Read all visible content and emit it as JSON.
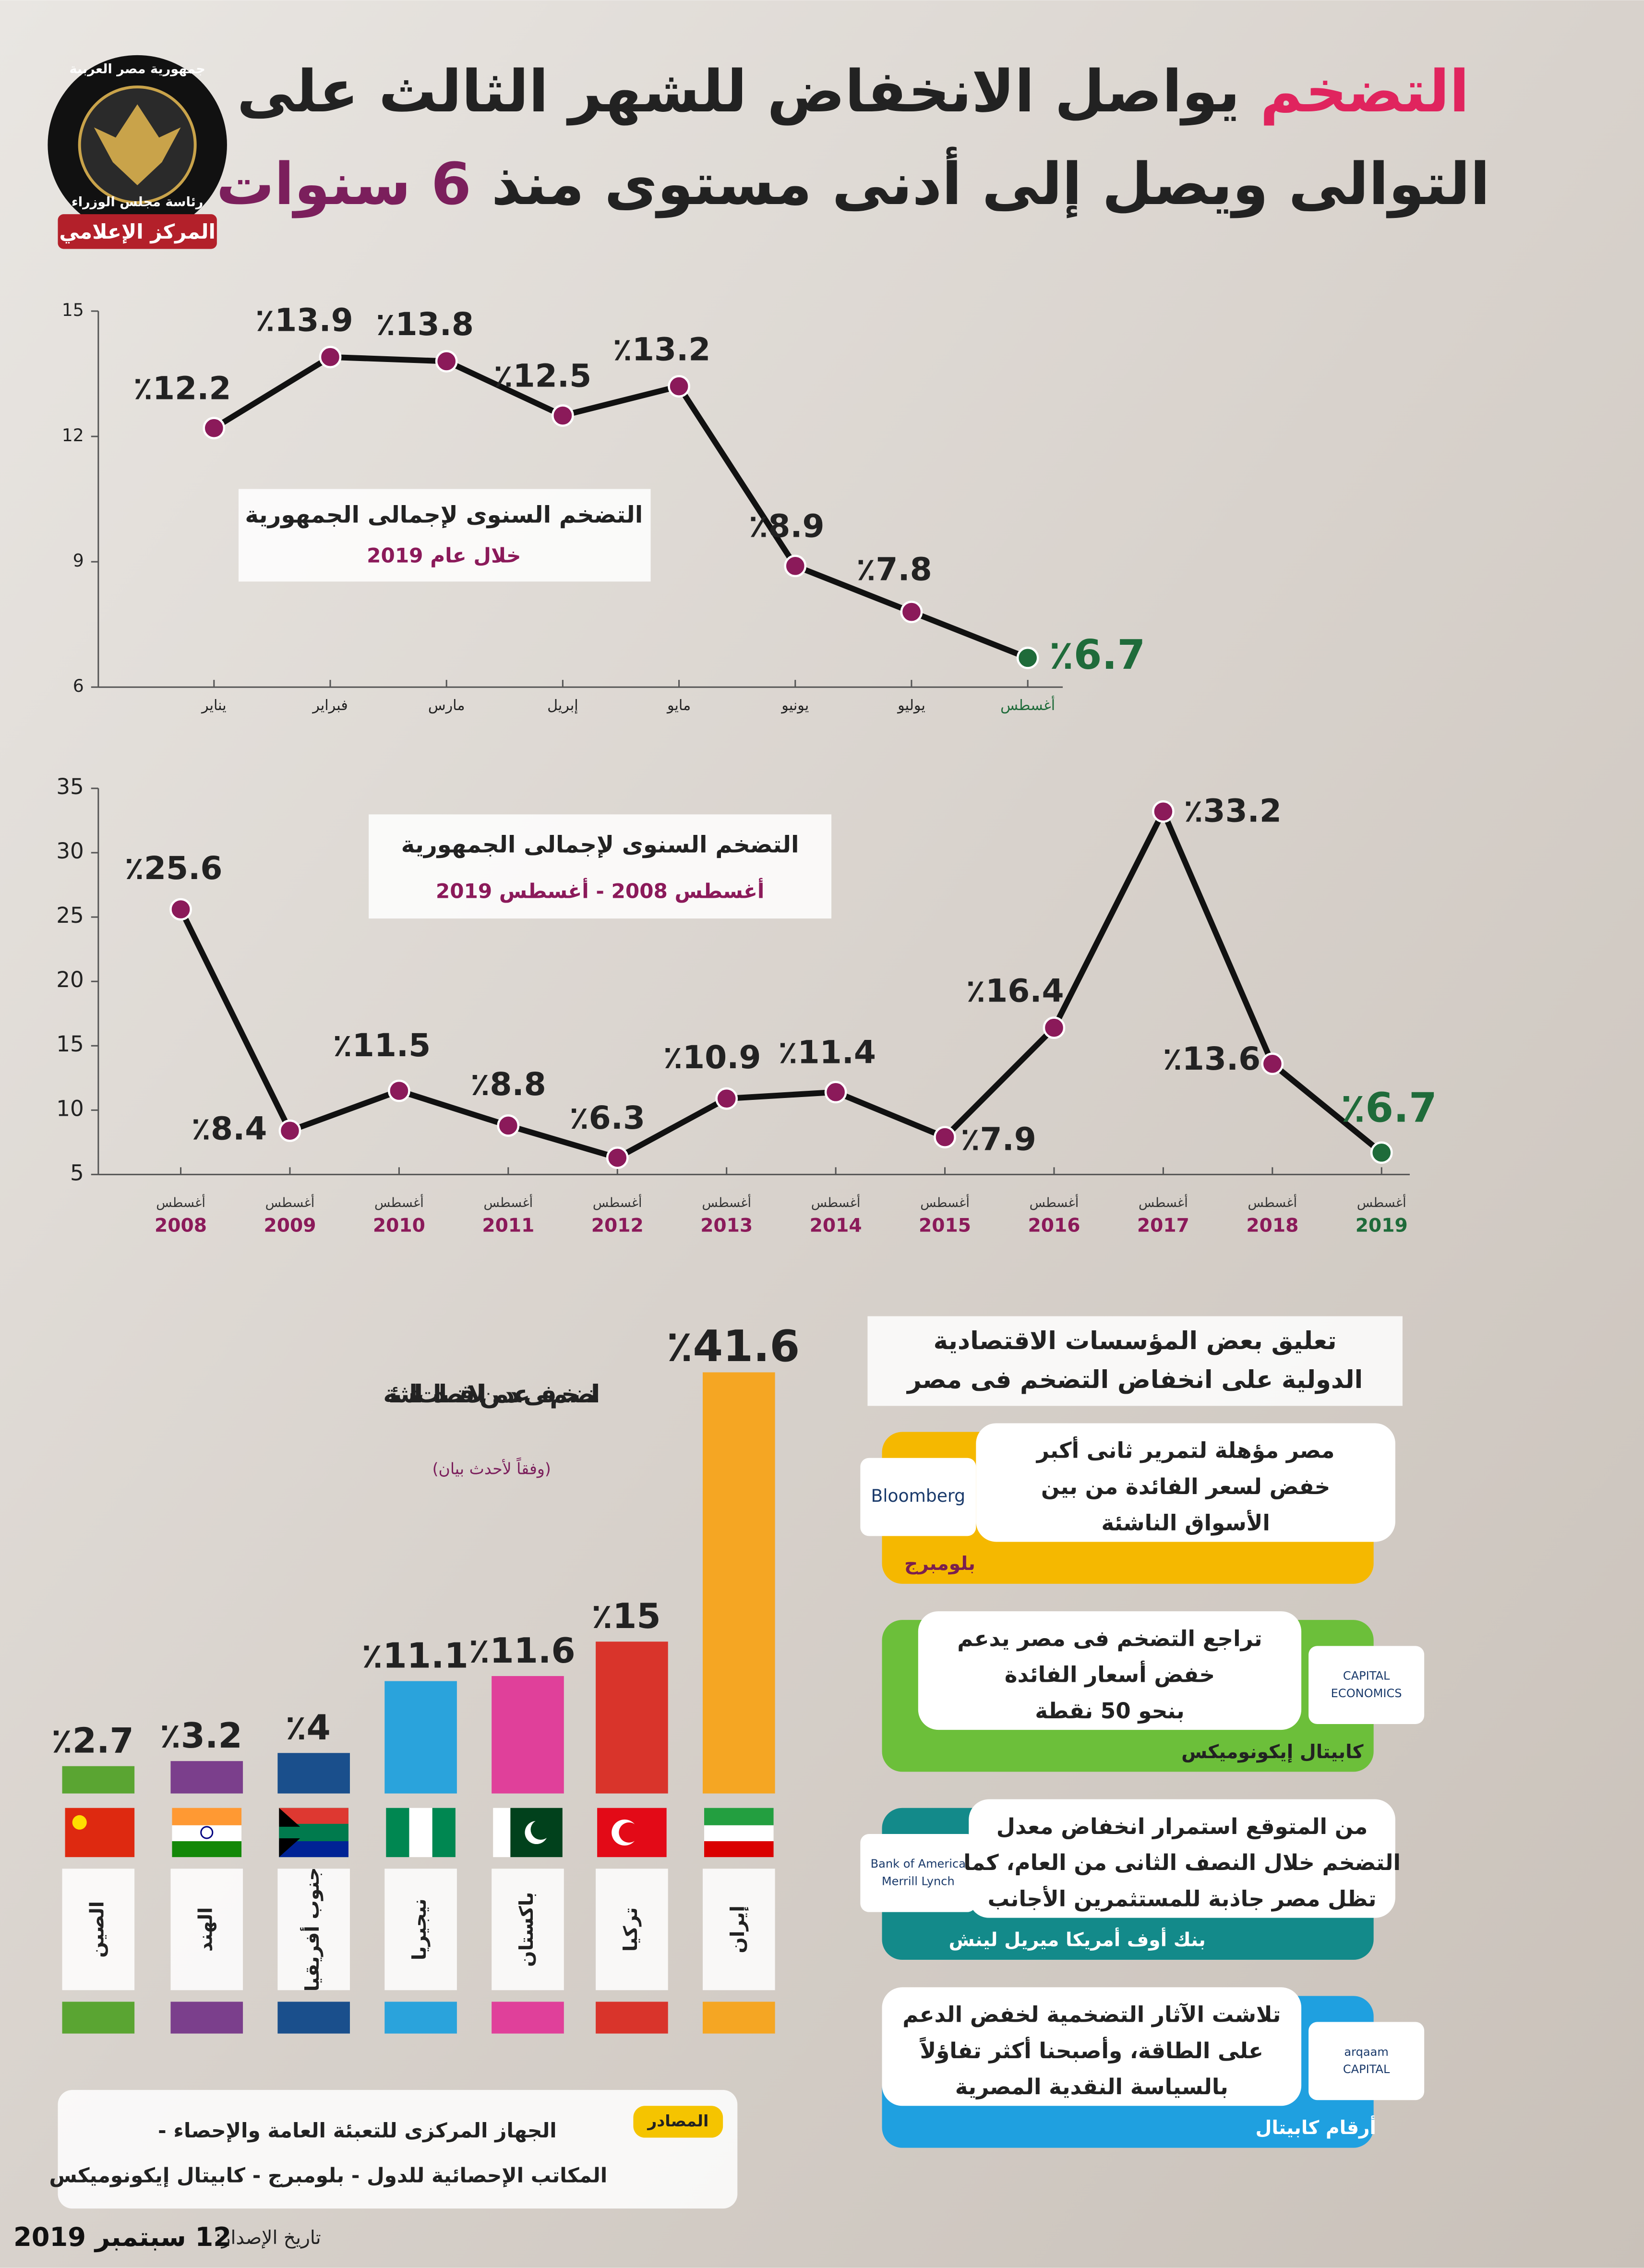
{
  "logo": {
    "line1": "جمهورية مصر العربية",
    "line2": "رئاسة مجلس الوزراء",
    "banner": "المركز الإعلامي"
  },
  "header": {
    "title_highlight": "التضخم",
    "title_line1": "يواصل الانخفاض للشهر الثالث على",
    "title_line2": "التوالى ويصل إلى أدنى مستوى منذ",
    "title_highlight2": "6 سنوات"
  },
  "chart_data": [
    {
      "type": "line",
      "title": "التضخم السنوى لإجمالى الجمهورية",
      "subtitle": "خلال عام 2019",
      "categories": [
        "يناير",
        "فبراير",
        "مارس",
        "إبريل",
        "مايو",
        "يونيو",
        "يوليو",
        "أغسطس"
      ],
      "values": [
        12.2,
        13.9,
        13.8,
        12.5,
        13.2,
        8.9,
        7.8,
        6.7
      ],
      "value_labels": [
        "٪12.2",
        "٪13.9",
        "٪13.8",
        "٪12.5",
        "٪13.2",
        "٪8.9",
        "٪7.8",
        "٪6.7"
      ],
      "color": "#111111",
      "marker_color": "#8b1a5a",
      "highlight_color": "#1f6b3a",
      "ylim": [
        6,
        15
      ],
      "yticks": [
        6,
        9,
        12,
        15
      ]
    },
    {
      "type": "line",
      "title": "التضخم السنوى لإجمالى الجمهورية",
      "subtitle": "أغسطس 2008 - أغسطس 2019",
      "x_month": "أغسطس",
      "categories": [
        "2008",
        "2009",
        "2010",
        "2011",
        "2012",
        "2013",
        "2014",
        "2015",
        "2016",
        "2017",
        "2018",
        "2019"
      ],
      "values": [
        25.6,
        8.4,
        11.5,
        8.8,
        6.3,
        10.9,
        11.4,
        7.9,
        16.4,
        33.2,
        13.6,
        6.7
      ],
      "value_labels": [
        "٪25.6",
        "٪8.4",
        "٪11.5",
        "٪8.8",
        "٪6.3",
        "٪10.9",
        "٪11.4",
        "٪7.9",
        "٪16.4",
        "٪33.2",
        "٪13.6",
        "٪6.7"
      ],
      "color": "#111111",
      "marker_color": "#8b1a5a",
      "highlight_color": "#1f6b3a",
      "ylim": [
        5,
        35
      ],
      "yticks": [
        5,
        10,
        15,
        20,
        25,
        30,
        35
      ]
    },
    {
      "type": "bar",
      "title": "التضخم فى عدد من الاقتصادات الناشئة",
      "subtitle": "(وفقاً لأحدث بيان)",
      "categories": [
        "الصين",
        "الهند",
        "جنوب أفريقيا",
        "نيجيريا",
        "باكستان",
        "تركيا",
        "إيران"
      ],
      "values": [
        2.7,
        3.2,
        4,
        11.1,
        11.6,
        15,
        41.6
      ],
      "value_labels": [
        "٪2.7",
        "٪3.2",
        "٪4",
        "٪11.1",
        "٪11.6",
        "٪15",
        "٪41.6"
      ],
      "colors": [
        "#5aa532",
        "#7b3f8c",
        "#1a4f8c",
        "#2aa3dc",
        "#e0409a",
        "#d9342b",
        "#f5a623"
      ]
    }
  ],
  "commentary": {
    "heading_line1": "تعليق بعض المؤسسات الاقتصادية",
    "heading_line2": "الدولية على انخفاض التضخم فى مصر",
    "items": [
      {
        "lines": [
          "مصر مؤهلة لتمرير ثانى أكبر",
          "خفض لسعر الفائدة من بين",
          "الأسواق الناشئة"
        ],
        "source": "بلومبرج",
        "logo": [
          "Bloomberg"
        ]
      },
      {
        "lines": [
          "تراجع التضخم فى مصر يدعم",
          "خفض أسعار الفائدة",
          "بنحو 50 نقطة"
        ],
        "source": "كابيتال إيكونوميكس",
        "logo": [
          "CAPITAL",
          "ECONOMICS"
        ]
      },
      {
        "lines": [
          "من المتوقع استمرار انخفاض معدل",
          "التضخم خلال النصف الثانى من العام، كما",
          "تظل مصر جاذبة للمستثمرين الأجانب"
        ],
        "source": "بنك أوف أمريكا ميريل لينش",
        "logo": [
          "Bank of America",
          "Merrill Lynch"
        ]
      },
      {
        "lines": [
          "تلاشت الآثار التضخمية لخفض الدعم",
          "على الطاقة، وأصبحنا أكثر تفاؤلاً",
          "بالسياسة النقدية المصرية"
        ],
        "source": "أرقام كابيتال",
        "logo": [
          "arqaam",
          "CAPITAL"
        ]
      }
    ]
  },
  "sources": {
    "label": "المصادر",
    "lines": [
      "الجهاز المركزى للتعبئة العامة والإحصاء -",
      "المكاتب الإحصائية للدول - بلومبرج - كابيتال إيكونوميكس"
    ]
  },
  "release": {
    "label": "تاريخ الإصدار:",
    "date": "12 سبتمبر 2019"
  }
}
